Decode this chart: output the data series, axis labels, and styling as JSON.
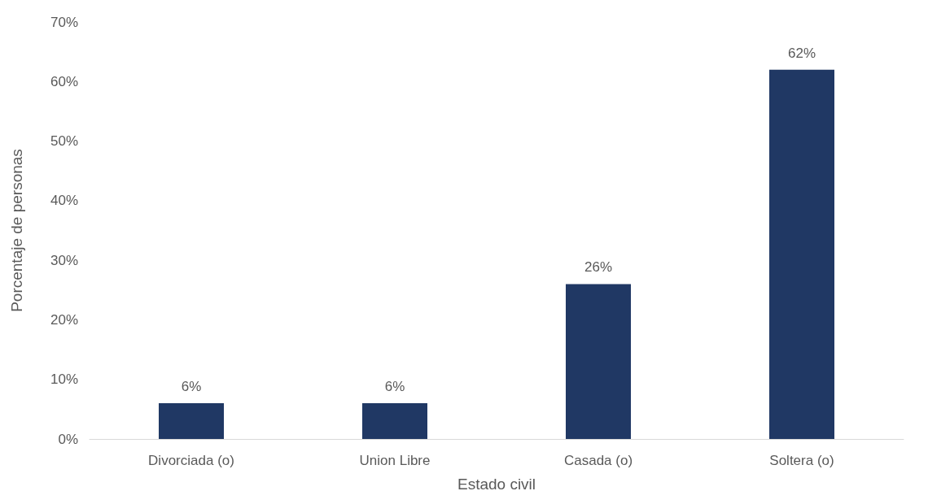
{
  "chart_data": {
    "type": "bar",
    "xlabel": "Estado civil",
    "ylabel": "Porcentaje de personas",
    "categories": [
      "Divorciada (o)",
      "Union Libre",
      "Casada (o)",
      "Soltera (o)"
    ],
    "values": [
      6,
      6,
      26,
      62
    ],
    "value_labels": [
      "6%",
      "6%",
      "26%",
      "62%"
    ],
    "color": "#203864",
    "ylim": [
      0,
      70
    ],
    "yticks": [
      {
        "value": 0,
        "label": "0%"
      },
      {
        "value": 10,
        "label": "10%"
      },
      {
        "value": 20,
        "label": "20%"
      },
      {
        "value": 30,
        "label": "30%"
      },
      {
        "value": 40,
        "label": "40%"
      },
      {
        "value": 50,
        "label": "50%"
      },
      {
        "value": 60,
        "label": "60%"
      },
      {
        "value": 70,
        "label": "70%"
      }
    ],
    "grid": false
  }
}
